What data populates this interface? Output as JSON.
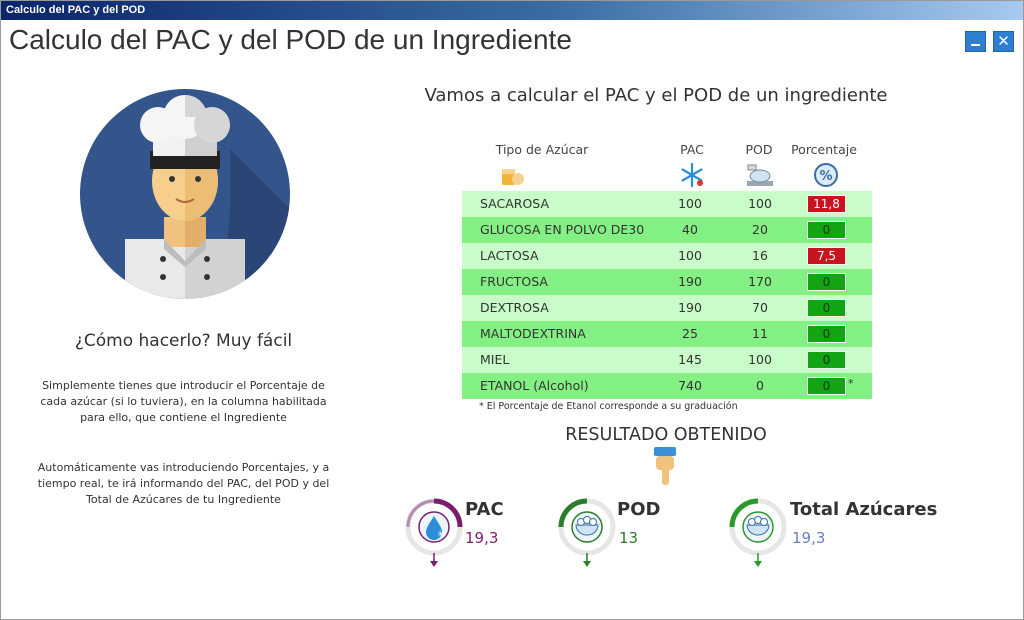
{
  "window": {
    "titlebar": "Calculo del PAC y del POD",
    "heading": "Calculo del PAC y del POD de un Ingrediente",
    "minimize_icon": "minimize-icon",
    "close_glyph": "✕"
  },
  "left": {
    "avatar_icon": "chef-icon",
    "how_title": "¿Cómo hacerlo? Muy fácil",
    "how_p1": "Simplemente tienes que introducir el Porcentaje de cada azúcar (si lo tuviera), en la columna habilitada para ello, que contiene el Ingrediente",
    "how_p2": "Automáticamente vas introduciendo Porcentajes, y a tiempo real, te irá informando del PAC, del POD y del Total de Azúcares de tu Ingrediente"
  },
  "calc": {
    "title": "Vamos a calcular el PAC y el POD de un ingrediente",
    "headers": {
      "tipo": "Tipo de Azúcar",
      "pac": "PAC",
      "pod": "POD",
      "porcentaje": "Porcentaje"
    },
    "header_icons": [
      "sugar-icon",
      "snowflake-icon",
      "scale-icon",
      "percent-icon"
    ],
    "rows": [
      {
        "name": "SACAROSA",
        "pac": "100",
        "pod": "100",
        "pct": "11,8",
        "state": "red",
        "note": ""
      },
      {
        "name": "GLUCOSA EN POLVO DE30",
        "pac": "40",
        "pod": "20",
        "pct": "0",
        "state": "green",
        "note": ""
      },
      {
        "name": "LACTOSA",
        "pac": "100",
        "pod": "16",
        "pct": "7,5",
        "state": "red",
        "note": ""
      },
      {
        "name": "FRUCTOSA",
        "pac": "190",
        "pod": "170",
        "pct": "0",
        "state": "green",
        "note": ""
      },
      {
        "name": "DEXTROSA",
        "pac": "190",
        "pod": "70",
        "pct": "0",
        "state": "green",
        "note": ""
      },
      {
        "name": "MALTODEXTRINA",
        "pac": "25",
        "pod": "11",
        "pct": "0",
        "state": "green",
        "note": ""
      },
      {
        "name": "MIEL",
        "pac": "145",
        "pod": "100",
        "pct": "0",
        "state": "green",
        "note": ""
      },
      {
        "name": "ETANOL (Alcohol)",
        "pac": "740",
        "pod": "0",
        "pct": "0",
        "state": "green",
        "note": "*"
      }
    ],
    "footnote": "* El Porcentaje de Etanol corresponde a su graduación"
  },
  "result": {
    "title": "RESULTADO OBTENIDO",
    "pointer_icon": "pointing-hand-icon",
    "pac": {
      "label": "PAC",
      "value": "19,3",
      "color": "#7a1f6e",
      "icon": "water-drop-snowflake-icon"
    },
    "pod": {
      "label": "POD",
      "value": "13",
      "color": "#2a7d2a",
      "icon": "sugar-bowl-icon"
    },
    "total": {
      "label": "Total Azúcares",
      "value": "19,3",
      "color": "#6a7fc8",
      "icon": "sugar-bowl-icon"
    }
  },
  "colors": {
    "row_light": "#c8fcc8",
    "row_dark": "#82f082",
    "cell_red": "#c8141e",
    "cell_green": "#12a412",
    "win_button": "#2e7fd1"
  }
}
